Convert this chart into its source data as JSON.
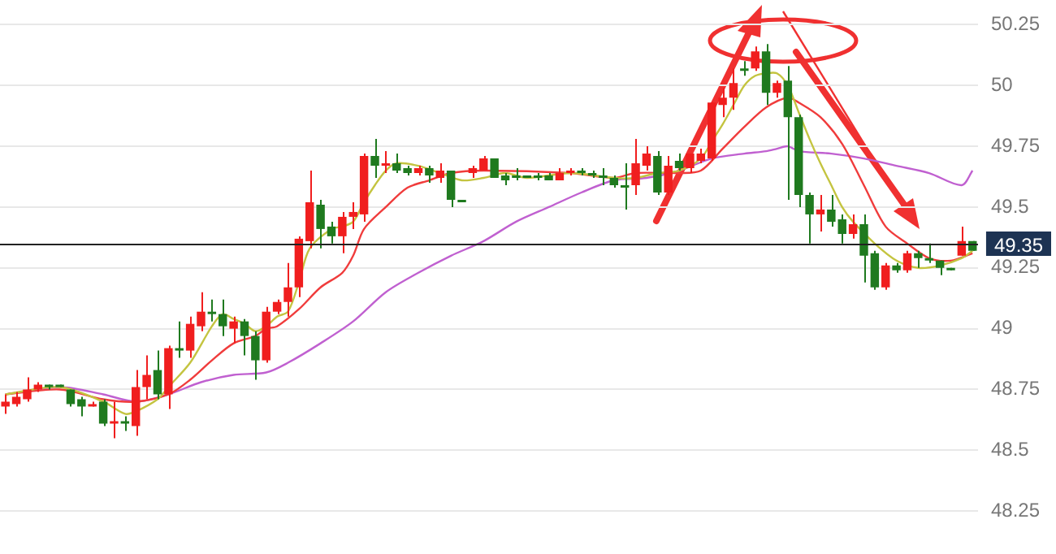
{
  "chart_data": {
    "type": "candlestick",
    "categories": [
      null,
      null,
      null,
      null,
      null,
      null,
      null,
      null,
      null,
      null,
      null,
      null,
      null,
      null,
      null,
      null,
      null,
      null,
      null,
      null,
      null,
      null,
      null,
      null,
      null,
      null,
      null,
      null,
      null,
      null,
      null,
      null,
      null,
      null,
      null,
      null,
      null,
      null,
      null,
      null,
      null,
      null,
      null,
      null,
      null,
      null,
      null,
      null,
      null,
      null,
      null,
      null,
      null,
      null,
      null,
      null,
      null,
      null,
      null,
      null,
      null,
      null,
      null,
      null,
      null,
      null,
      null,
      null,
      null,
      null,
      null,
      null,
      null,
      null,
      null,
      null,
      null,
      null,
      null,
      null,
      null,
      null,
      null,
      null,
      null,
      null,
      null,
      null,
      null,
      null
    ],
    "ohlc": [
      [
        48.68,
        48.73,
        48.65,
        48.7
      ],
      [
        48.69,
        48.74,
        48.68,
        48.72
      ],
      [
        48.71,
        48.8,
        48.7,
        48.75
      ],
      [
        48.75,
        48.78,
        48.74,
        48.77
      ],
      [
        48.77,
        48.77,
        48.75,
        48.76
      ],
      [
        48.77,
        48.77,
        48.76,
        48.76
      ],
      [
        48.75,
        48.75,
        48.68,
        48.69
      ],
      [
        48.71,
        48.72,
        48.64,
        48.68
      ],
      [
        48.68,
        48.7,
        48.68,
        48.69
      ],
      [
        48.7,
        48.71,
        48.6,
        48.61
      ],
      [
        48.61,
        48.7,
        48.55,
        48.62
      ],
      [
        48.62,
        48.64,
        48.58,
        48.61
      ],
      [
        48.6,
        48.83,
        48.56,
        48.76
      ],
      [
        48.76,
        48.89,
        48.71,
        48.81
      ],
      [
        48.83,
        48.91,
        48.71,
        48.73
      ],
      [
        48.73,
        48.93,
        48.67,
        48.92
      ],
      [
        48.92,
        49.03,
        48.88,
        48.91
      ],
      [
        48.91,
        49.05,
        48.88,
        49.02
      ],
      [
        49.01,
        49.15,
        48.99,
        49.07
      ],
      [
        49.07,
        49.12,
        49.03,
        49.06
      ],
      [
        49.06,
        49.12,
        48.97,
        49.01
      ],
      [
        49.0,
        49.05,
        48.94,
        49.03
      ],
      [
        49.03,
        49.04,
        48.89,
        48.97
      ],
      [
        48.97,
        48.99,
        48.79,
        48.87
      ],
      [
        48.87,
        49.09,
        48.86,
        49.07
      ],
      [
        49.07,
        49.12,
        49.06,
        49.11
      ],
      [
        49.11,
        49.27,
        49.05,
        49.17
      ],
      [
        49.17,
        49.38,
        49.13,
        49.37
      ],
      [
        49.36,
        49.65,
        49.33,
        49.52
      ],
      [
        49.51,
        49.53,
        49.33,
        49.41
      ],
      [
        49.42,
        49.44,
        49.35,
        49.38
      ],
      [
        49.38,
        49.48,
        49.31,
        49.46
      ],
      [
        49.46,
        49.52,
        49.41,
        49.48
      ],
      [
        49.47,
        49.72,
        49.44,
        49.71
      ],
      [
        49.71,
        49.78,
        49.62,
        49.67
      ],
      [
        49.67,
        49.73,
        49.64,
        49.68
      ],
      [
        49.68,
        49.72,
        49.64,
        49.65
      ],
      [
        49.66,
        49.67,
        49.63,
        49.64
      ],
      [
        49.64,
        49.67,
        49.63,
        49.66
      ],
      [
        49.66,
        49.67,
        49.6,
        49.63
      ],
      [
        49.62,
        49.68,
        49.6,
        49.65
      ],
      [
        49.65,
        49.65,
        49.5,
        49.53
      ],
      [
        49.53,
        49.53,
        49.52,
        49.52
      ],
      [
        49.64,
        49.67,
        49.62,
        49.66
      ],
      [
        49.65,
        49.71,
        49.65,
        49.7
      ],
      [
        49.7,
        49.7,
        49.62,
        49.62
      ],
      [
        49.63,
        49.64,
        49.59,
        49.61
      ],
      [
        49.63,
        49.66,
        49.61,
        49.62
      ],
      [
        49.63,
        49.63,
        49.62,
        49.62
      ],
      [
        49.63,
        49.64,
        49.61,
        49.62
      ],
      [
        49.63,
        49.64,
        49.61,
        49.61
      ],
      [
        49.61,
        49.66,
        49.61,
        49.64
      ],
      [
        49.64,
        49.66,
        49.63,
        49.65
      ],
      [
        49.65,
        49.66,
        49.63,
        49.64
      ],
      [
        49.64,
        49.65,
        49.62,
        49.63
      ],
      [
        49.63,
        49.66,
        49.59,
        49.62
      ],
      [
        49.62,
        49.63,
        49.58,
        49.59
      ],
      [
        49.59,
        49.68,
        49.49,
        49.58
      ],
      [
        49.59,
        49.78,
        49.55,
        49.68
      ],
      [
        49.67,
        49.75,
        49.65,
        49.72
      ],
      [
        49.71,
        49.73,
        49.55,
        49.56
      ],
      [
        49.56,
        49.71,
        49.55,
        49.67
      ],
      [
        49.69,
        49.72,
        49.65,
        49.66
      ],
      [
        49.66,
        49.72,
        49.64,
        49.72
      ],
      [
        49.69,
        49.74,
        49.68,
        49.72
      ],
      [
        49.7,
        49.93,
        49.69,
        49.93
      ],
      [
        49.92,
        49.99,
        49.87,
        49.95
      ],
      [
        49.95,
        50.07,
        49.9,
        50.01
      ],
      [
        50.07,
        50.1,
        50.04,
        50.06
      ],
      [
        50.07,
        50.16,
        50.06,
        50.14
      ],
      [
        50.14,
        50.17,
        49.92,
        49.97
      ],
      [
        49.97,
        50.02,
        49.95,
        50.01
      ],
      [
        50.02,
        50.08,
        49.53,
        49.87
      ],
      [
        49.87,
        49.88,
        49.5,
        49.55
      ],
      [
        49.55,
        49.56,
        49.35,
        49.47
      ],
      [
        49.47,
        49.55,
        49.4,
        49.49
      ],
      [
        49.49,
        49.55,
        49.42,
        49.44
      ],
      [
        49.45,
        49.47,
        49.35,
        49.39
      ],
      [
        49.39,
        49.47,
        49.37,
        49.43
      ],
      [
        49.43,
        49.47,
        49.19,
        49.3
      ],
      [
        49.31,
        49.32,
        49.16,
        49.17
      ],
      [
        49.17,
        49.27,
        49.16,
        49.26
      ],
      [
        49.26,
        49.27,
        49.23,
        49.24
      ],
      [
        49.24,
        49.32,
        49.23,
        49.31
      ],
      [
        49.31,
        49.32,
        49.25,
        49.29
      ],
      [
        49.29,
        49.35,
        49.27,
        49.28
      ],
      [
        49.28,
        49.28,
        49.22,
        49.25
      ],
      [
        49.25,
        49.25,
        49.24,
        49.24
      ],
      [
        49.3,
        49.42,
        49.3,
        49.36
      ],
      [
        49.36,
        49.36,
        49.32,
        49.32
      ]
    ],
    "colors": [
      "#f01e1e",
      "#f01e1e",
      "#f01e1e",
      "#f01e1e",
      "#1f7a1f",
      "#1f7a1f",
      "#1f7a1f",
      "#1f7a1f",
      "#f01e1e",
      "#1f7a1f",
      "#f01e1e",
      "#1f7a1f",
      "#f01e1e",
      "#f01e1e",
      "#1f7a1f",
      "#f01e1e",
      "#1f7a1f",
      "#f01e1e",
      "#f01e1e",
      "#1f7a1f",
      "#1f7a1f",
      "#f01e1e",
      "#1f7a1f",
      "#1f7a1f",
      "#f01e1e",
      "#f01e1e",
      "#f01e1e",
      "#f01e1e",
      "#f01e1e",
      "#1f7a1f",
      "#1f7a1f",
      "#f01e1e",
      "#f01e1e",
      "#f01e1e",
      "#1f7a1f",
      "#f01e1e",
      "#1f7a1f",
      "#1f7a1f",
      "#f01e1e",
      "#1f7a1f",
      "#f01e1e",
      "#1f7a1f",
      "#1f7a1f",
      "#f01e1e",
      "#f01e1e",
      "#1f7a1f",
      "#1f7a1f",
      "#1f7a1f",
      "#1f7a1f",
      "#1f7a1f",
      "#1f7a1f",
      "#f01e1e",
      "#f01e1e",
      "#1f7a1f",
      "#1f7a1f",
      "#1f7a1f",
      "#1f7a1f",
      "#1f7a1f",
      "#f01e1e",
      "#f01e1e",
      "#1f7a1f",
      "#f01e1e",
      "#1f7a1f",
      "#f01e1e",
      "#f01e1e",
      "#f01e1e",
      "#f01e1e",
      "#f01e1e",
      "#1f7a1f",
      "#f01e1e",
      "#1f7a1f",
      "#f01e1e",
      "#1f7a1f",
      "#1f7a1f",
      "#1f7a1f",
      "#f01e1e",
      "#1f7a1f",
      "#1f7a1f",
      "#f01e1e",
      "#1f7a1f",
      "#1f7a1f",
      "#f01e1e",
      "#1f7a1f",
      "#f01e1e",
      "#1f7a1f",
      "#1f7a1f",
      "#1f7a1f",
      "#1f7a1f",
      "#f01e1e",
      "#1f7a1f"
    ],
    "series": [
      {
        "type": "line",
        "color": "#c4c440",
        "values": [
          48.73,
          null,
          null,
          null,
          null,
          48.76,
          null,
          null,
          null,
          48.7,
          null,
          48.65,
          48.66,
          null,
          48.71,
          48.76,
          null,
          48.86,
          null,
          49.01,
          49.06,
          49.04,
          49.02,
          48.99,
          49.01,
          49.05,
          49.07,
          49.19,
          49.33,
          null,
          49.41,
          49.42,
          49.44,
          49.52,
          49.59,
          49.65,
          49.68,
          null,
          49.67,
          null,
          49.64,
          null,
          49.61,
          null,
          49.62,
          null,
          49.64,
          null,
          49.62,
          null,
          null,
          null,
          49.64,
          null,
          null,
          null,
          49.62,
          null,
          49.62,
          null,
          49.64,
          null,
          49.65,
          null,
          49.7,
          49.77,
          49.84,
          49.92,
          50.0,
          50.04,
          50.05,
          50.05,
          50.0,
          49.89,
          49.78,
          49.68,
          49.59,
          49.5,
          49.44,
          null,
          49.35,
          null,
          49.28,
          null,
          49.25,
          null,
          49.26,
          null,
          49.29,
          49.32
        ]
      },
      {
        "type": "line",
        "color": "#f03c3c",
        "values": [
          48.73,
          null,
          null,
          null,
          null,
          48.75,
          null,
          null,
          null,
          48.71,
          null,
          null,
          48.7,
          null,
          null,
          48.73,
          null,
          48.79,
          null,
          48.87,
          null,
          48.94,
          null,
          48.97,
          49.0,
          49.01,
          null,
          49.08,
          null,
          49.17,
          null,
          49.23,
          49.3,
          49.41,
          null,
          49.5,
          null,
          49.58,
          null,
          49.61,
          null,
          49.64,
          null,
          null,
          49.65,
          null,
          null,
          null,
          null,
          null,
          null,
          null,
          49.64,
          null,
          null,
          null,
          49.62,
          null,
          49.64,
          null,
          null,
          null,
          49.64,
          null,
          49.65,
          null,
          49.74,
          null,
          49.83,
          null,
          49.91,
          null,
          49.95,
          49.93,
          null,
          49.87,
          null,
          49.76,
          null,
          49.59,
          null,
          49.42,
          null,
          49.35,
          null,
          49.29,
          null,
          49.28,
          null,
          49.31
        ]
      },
      {
        "type": "line",
        "color": "#c060d0",
        "values": [
          48.73,
          null,
          null,
          null,
          null,
          48.76,
          null,
          null,
          null,
          48.73,
          null,
          null,
          48.7,
          null,
          null,
          48.73,
          null,
          null,
          48.78,
          null,
          null,
          48.81,
          null,
          null,
          48.82,
          null,
          48.86,
          null,
          null,
          48.94,
          null,
          null,
          49.03,
          null,
          null,
          49.15,
          null,
          null,
          49.23,
          null,
          null,
          49.3,
          null,
          null,
          49.36,
          null,
          null,
          49.44,
          null,
          null,
          49.5,
          null,
          null,
          49.56,
          null,
          null,
          49.61,
          null,
          null,
          49.62,
          null,
          null,
          49.65,
          null,
          null,
          49.7,
          null,
          null,
          49.72,
          null,
          49.73,
          49.74,
          49.75,
          49.73,
          null,
          null,
          49.72,
          null,
          null,
          49.7,
          null,
          null,
          49.67,
          null,
          null,
          49.64,
          null,
          null,
          49.59,
          49.65
        ]
      }
    ],
    "ylim": [
      48.25,
      50.25
    ],
    "yticks": [
      48.25,
      48.5,
      48.75,
      49,
      49.25,
      49.5,
      49.75,
      50,
      50.25
    ],
    "grid": "y",
    "ref_lines": [
      {
        "axis": "y",
        "value": 49.35,
        "label": "49.35"
      }
    ]
  }
}
